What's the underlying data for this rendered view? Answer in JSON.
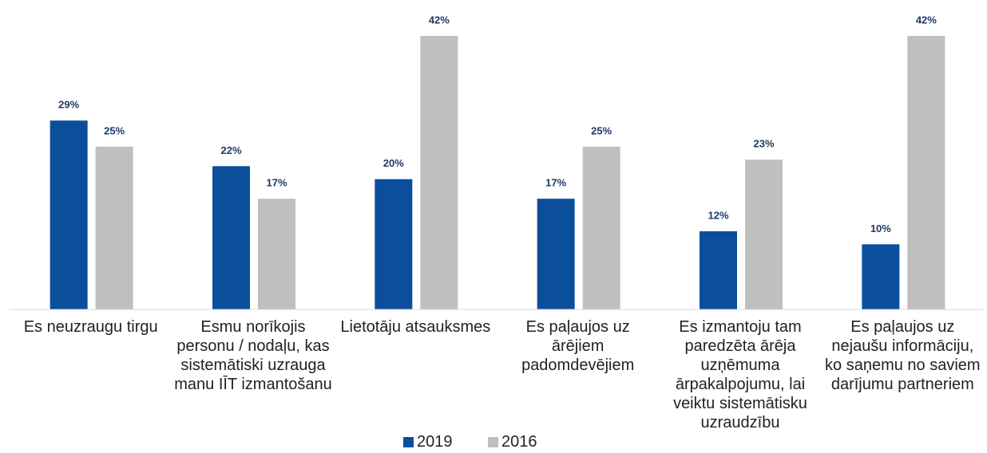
{
  "chart_data": {
    "type": "bar",
    "categories": [
      "Es neuzraugu tirgu",
      "Esmu norīkojis personu / nodaļu, kas sistemātiski uzrauga manu IĪT izmantošanu",
      "Lietotāju atsauksmes",
      "Es paļaujos uz ārējiem padomdevējiem",
      "Es izmantoju tam paredzēta ārēja uzņēmuma ārpakalpojumu, lai veiktu sistemātisku uzraudzību",
      "Es paļaujos uz nejaušu informāciju, ko saņemu no saviem darījumu partneriem"
    ],
    "series": [
      {
        "name": "2019",
        "color": "#0b4f9c",
        "values": [
          29,
          22,
          20,
          17,
          12,
          10
        ],
        "value_labels": [
          "29%",
          "22%",
          "20%",
          "17%",
          "12%",
          "10%"
        ]
      },
      {
        "name": "2016",
        "color": "#bfbfbf",
        "values": [
          25,
          17,
          42,
          25,
          23,
          42
        ],
        "value_labels": [
          "25%",
          "17%",
          "42%",
          "25%",
          "23%",
          "42%"
        ]
      }
    ]
  }
}
